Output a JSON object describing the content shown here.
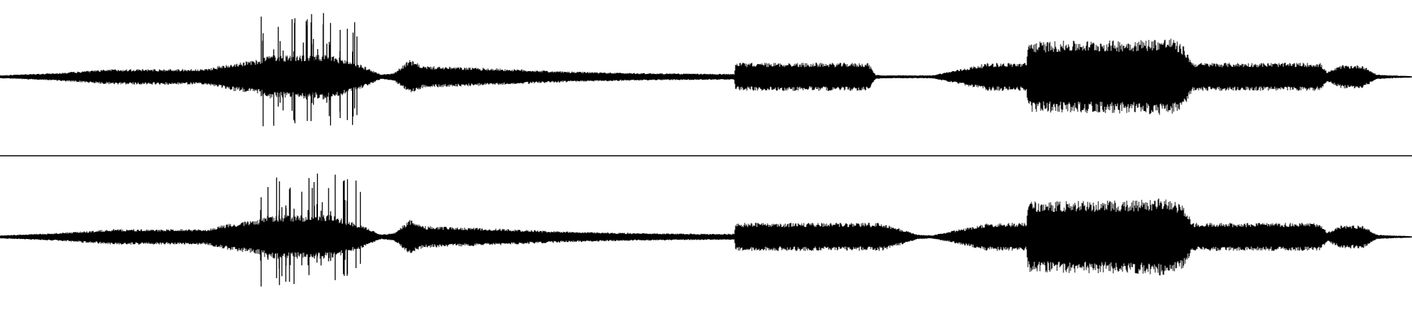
{
  "view": {
    "background": "#ffffff",
    "waveform_color": "#000000",
    "channel_count": 2,
    "channels": [
      {
        "name": "",
        "index": 0
      },
      {
        "name": "",
        "index": 1
      }
    ],
    "envelope": {
      "note": "",
      "breakpoints_time_fraction": [
        0,
        0.04,
        0.08,
        0.145,
        0.165,
        0.183,
        0.19,
        0.235,
        0.255,
        0.27,
        0.279,
        0.29,
        0.3,
        0.35,
        0.4,
        0.45,
        0.5,
        0.52,
        0.521,
        0.55,
        0.6,
        0.615,
        0.62,
        0.625,
        0.65,
        0.66,
        0.68,
        0.7,
        0.72,
        0.727,
        0.728,
        0.75,
        0.8,
        0.83,
        0.838,
        0.845,
        0.86,
        0.9,
        0.935,
        0.94,
        0.95,
        0.965,
        0.975,
        0.985,
        1.0
      ],
      "ch0_amplitude": [
        0.02,
        0.05,
        0.1,
        0.1,
        0.18,
        0.22,
        0.28,
        0.28,
        0.16,
        0.03,
        0.05,
        0.22,
        0.14,
        0.11,
        0.07,
        0.05,
        0.04,
        0.04,
        0.18,
        0.18,
        0.18,
        0.18,
        0.03,
        0.02,
        0.02,
        0.02,
        0.1,
        0.18,
        0.18,
        0.18,
        0.45,
        0.46,
        0.47,
        0.5,
        0.4,
        0.18,
        0.18,
        0.18,
        0.18,
        0.06,
        0.15,
        0.15,
        0.03,
        0.02,
        0.01
      ],
      "ch1_amplitude": [
        0.02,
        0.05,
        0.1,
        0.1,
        0.18,
        0.22,
        0.28,
        0.28,
        0.16,
        0.03,
        0.05,
        0.22,
        0.14,
        0.11,
        0.07,
        0.05,
        0.04,
        0.04,
        0.18,
        0.18,
        0.18,
        0.18,
        0.18,
        0.18,
        0.03,
        0.02,
        0.1,
        0.18,
        0.18,
        0.18,
        0.45,
        0.46,
        0.47,
        0.5,
        0.4,
        0.18,
        0.18,
        0.18,
        0.18,
        0.06,
        0.15,
        0.15,
        0.03,
        0.02,
        0.01
      ]
    },
    "transient_bursts": {
      "start_fraction": 0.183,
      "end_fraction": 0.258,
      "count": 34
    }
  }
}
